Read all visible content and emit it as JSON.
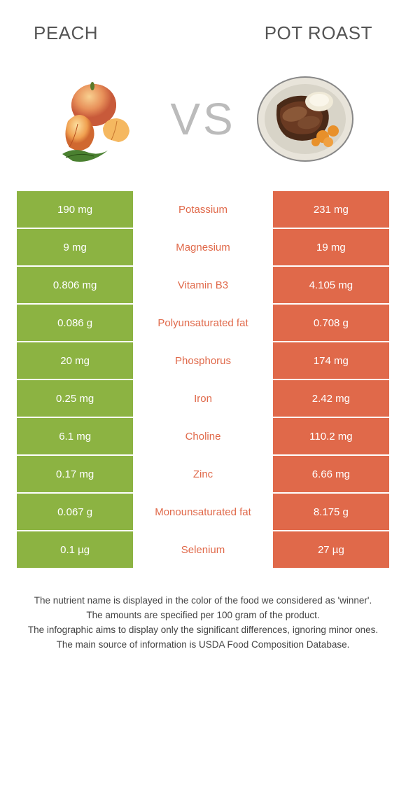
{
  "header": {
    "left": "Peach",
    "right": "Pot roast",
    "vs": "VS"
  },
  "colors": {
    "left": "#8cb342",
    "right": "#e0694a",
    "left_text": "#8cb342",
    "right_text": "#e0694a"
  },
  "rows": [
    {
      "left": "190 mg",
      "mid": "Potassium",
      "right": "231 mg",
      "winner": "right"
    },
    {
      "left": "9 mg",
      "mid": "Magnesium",
      "right": "19 mg",
      "winner": "right"
    },
    {
      "left": "0.806 mg",
      "mid": "Vitamin B3",
      "right": "4.105 mg",
      "winner": "right"
    },
    {
      "left": "0.086 g",
      "mid": "Polyunsaturated fat",
      "right": "0.708 g",
      "winner": "right"
    },
    {
      "left": "20 mg",
      "mid": "Phosphorus",
      "right": "174 mg",
      "winner": "right"
    },
    {
      "left": "0.25 mg",
      "mid": "Iron",
      "right": "2.42 mg",
      "winner": "right"
    },
    {
      "left": "6.1 mg",
      "mid": "Choline",
      "right": "110.2 mg",
      "winner": "right"
    },
    {
      "left": "0.17 mg",
      "mid": "Zinc",
      "right": "6.66 mg",
      "winner": "right"
    },
    {
      "left": "0.067 g",
      "mid": "Monounsaturated fat",
      "right": "8.175 g",
      "winner": "right"
    },
    {
      "left": "0.1 µg",
      "mid": "Selenium",
      "right": "27 µg",
      "winner": "right"
    }
  ],
  "footer": [
    "The nutrient name is displayed in the color of the food we considered as 'winner'.",
    "The amounts are specified per 100 gram of the product.",
    "The infographic aims to display only the significant differences, ignoring minor ones.",
    "The main source of information is USDA Food Composition Database."
  ]
}
